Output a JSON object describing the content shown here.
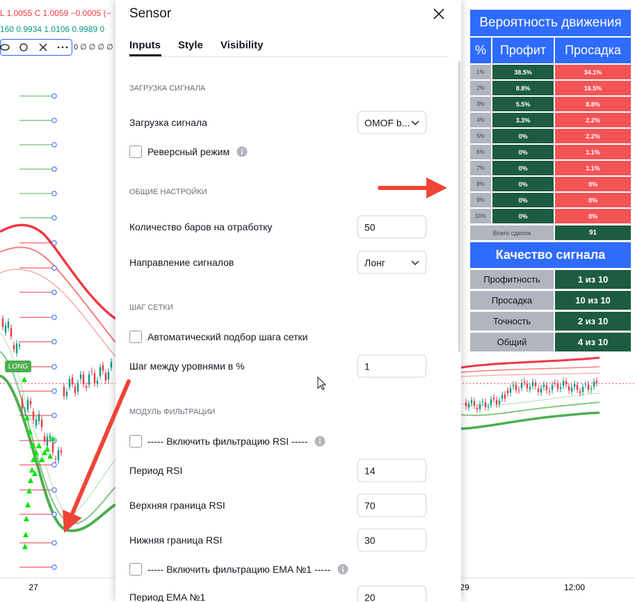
{
  "chart_legend": {
    "line1": "L 1.0055  C 1.0059  −0.0005 (−",
    "line2": "160  0.9934  1.0106  0.9989  0",
    "indicator_values": "0  ∅  ∅  ∅  ∅"
  },
  "chart_labels": {
    "signal_tag": "LONG",
    "x_axis": [
      "27",
      "29",
      "12:00"
    ]
  },
  "dialog": {
    "title": "Sensor",
    "tabs": [
      "Inputs",
      "Style",
      "Visibility"
    ],
    "sections": [
      {
        "heading": "ЗАГРУЗКА СИГНАЛА",
        "fields": [
          {
            "label": "Загрузка сигнала",
            "control": "select",
            "value": "OMOF b..."
          },
          {
            "label": "Реверсный режим",
            "control": "checkbox",
            "checked": false,
            "info": true
          }
        ]
      },
      {
        "heading": "ОБЩИЕ НАСТРОЙКИ",
        "fields": [
          {
            "label": "Количество баров на отработку",
            "control": "input",
            "value": 50
          },
          {
            "label": "Направление сигналов",
            "control": "select",
            "value": "Лонг"
          }
        ]
      },
      {
        "heading": "ШАГ СЕТКИ",
        "fields": [
          {
            "label": "Автоматический подбор шага сетки",
            "control": "checkbox",
            "checked": false,
            "info": false
          },
          {
            "label": "Шаг между уровнями в %",
            "control": "input",
            "value": 1
          }
        ]
      },
      {
        "heading": "МОДУЛЬ ФИЛЬТРАЦИИ",
        "fields": [
          {
            "label": "----- Включить фильтрацию RSI -----",
            "control": "checkbox",
            "checked": false,
            "info": true
          },
          {
            "label": "Период RSI",
            "control": "input",
            "value": 14
          },
          {
            "label": "Верхняя граница RSI",
            "control": "input",
            "value": 70
          },
          {
            "label": "Нижняя граница RSI",
            "control": "input",
            "value": 30
          },
          {
            "label": "----- Включить фильтрацию EMA №1 -----",
            "control": "checkbox",
            "checked": false,
            "info": true
          },
          {
            "label": "Период EMA №1",
            "control": "input",
            "value": 20
          }
        ]
      }
    ]
  },
  "stats_table": {
    "title": "Вероятность движения",
    "headers": [
      "%",
      "Профит",
      "Просадка"
    ],
    "rows": [
      [
        "1%",
        "38.5%",
        "34.1%"
      ],
      [
        "2%",
        "8.8%",
        "16.5%"
      ],
      [
        "3%",
        "5.5%",
        "8.8%"
      ],
      [
        "4%",
        "3.3%",
        "2.2%"
      ],
      [
        "5%",
        "0%",
        "2.2%"
      ],
      [
        "6%",
        "0%",
        "1.1%"
      ],
      [
        "7%",
        "0%",
        "1.1%"
      ],
      [
        "8%",
        "0%",
        "0%"
      ],
      [
        "9%",
        "0%",
        "0%"
      ],
      [
        "10%",
        "0%",
        "0%"
      ]
    ],
    "total": {
      "label": "Всего сделок",
      "value": 91
    },
    "quality": {
      "title": "Качество сигнала",
      "rows": [
        [
          "Профитность",
          "1 из 10"
        ],
        [
          "Просадка",
          "10 из 10"
        ],
        [
          "Точность",
          "2 из 10"
        ],
        [
          "Общий",
          "4 из 10"
        ]
      ]
    }
  }
}
